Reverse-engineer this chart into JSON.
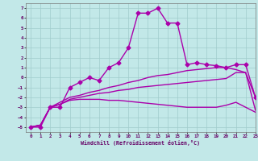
{
  "xlabel": "Windchill (Refroidissement éolien,°C)",
  "xlim": [
    -0.5,
    23
  ],
  "ylim": [
    -5.5,
    7.5
  ],
  "xticks": [
    0,
    1,
    2,
    3,
    4,
    5,
    6,
    7,
    8,
    9,
    10,
    11,
    12,
    13,
    14,
    15,
    16,
    17,
    18,
    19,
    20,
    21,
    22,
    23
  ],
  "yticks": [
    -5,
    -4,
    -3,
    -2,
    -1,
    0,
    1,
    2,
    3,
    4,
    5,
    6,
    7
  ],
  "bg_color": "#c2e8e8",
  "grid_color": "#a0cccc",
  "line_color": "#aa00aa",
  "line1_x": [
    0,
    1,
    2,
    3,
    4,
    5,
    6,
    7,
    8,
    9,
    10,
    11,
    12,
    13,
    14,
    15,
    16,
    17,
    18,
    19,
    20,
    21,
    22,
    23
  ],
  "line1_y": [
    -5,
    -5,
    -3,
    -3,
    -1,
    -0.5,
    0.0,
    -0.3,
    1.0,
    1.5,
    3.0,
    6.5,
    6.5,
    7.0,
    5.5,
    5.5,
    1.3,
    1.5,
    1.3,
    1.2,
    1.0,
    1.3,
    1.3,
    -2.0
  ],
  "line2_x": [
    0,
    1,
    2,
    3,
    4,
    5,
    6,
    7,
    8,
    9,
    10,
    11,
    12,
    13,
    14,
    15,
    16,
    17,
    18,
    19,
    20,
    21,
    22,
    23
  ],
  "line2_y": [
    -5,
    -4.8,
    -3.0,
    -2.5,
    -2.0,
    -1.8,
    -1.5,
    -1.3,
    -1.0,
    -0.8,
    -0.5,
    -0.3,
    0.0,
    0.2,
    0.3,
    0.5,
    0.7,
    0.8,
    0.9,
    1.0,
    1.0,
    0.8,
    0.5,
    -2.0
  ],
  "line3_x": [
    0,
    1,
    2,
    3,
    4,
    5,
    6,
    7,
    8,
    9,
    10,
    11,
    12,
    13,
    14,
    15,
    16,
    17,
    18,
    19,
    20,
    21,
    22,
    23
  ],
  "line3_y": [
    -5,
    -4.8,
    -3.0,
    -2.7,
    -2.2,
    -2.0,
    -1.8,
    -1.6,
    -1.5,
    -1.3,
    -1.2,
    -1.0,
    -0.9,
    -0.8,
    -0.7,
    -0.6,
    -0.5,
    -0.4,
    -0.3,
    -0.2,
    -0.1,
    0.5,
    0.5,
    -3.3
  ],
  "line4_x": [
    0,
    1,
    2,
    3,
    4,
    5,
    6,
    7,
    8,
    9,
    10,
    11,
    12,
    13,
    14,
    15,
    16,
    17,
    18,
    19,
    20,
    21,
    22,
    23
  ],
  "line4_y": [
    -5,
    -4.8,
    -3.0,
    -2.7,
    -2.3,
    -2.2,
    -2.2,
    -2.2,
    -2.3,
    -2.3,
    -2.4,
    -2.5,
    -2.6,
    -2.7,
    -2.8,
    -2.9,
    -3.0,
    -3.0,
    -3.0,
    -3.0,
    -2.8,
    -2.5,
    -3.0,
    -3.5
  ],
  "marker": "D",
  "marker_size": 2.5,
  "line_width": 1.0
}
